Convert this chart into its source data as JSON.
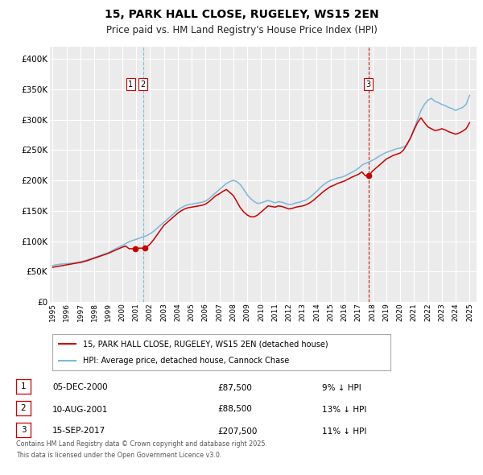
{
  "title": "15, PARK HALL CLOSE, RUGELEY, WS15 2EN",
  "subtitle": "Price paid vs. HM Land Registry's House Price Index (HPI)",
  "title_fontsize": 10,
  "subtitle_fontsize": 8.5,
  "background_color": "#ffffff",
  "plot_bg_color": "#ebebeb",
  "grid_color": "#ffffff",
  "hpi_color": "#7ab8d8",
  "price_color": "#cc0000",
  "xlim": [
    1994.8,
    2025.5
  ],
  "ylim": [
    0,
    420000
  ],
  "yticks": [
    0,
    50000,
    100000,
    150000,
    200000,
    250000,
    300000,
    350000,
    400000
  ],
  "ytick_labels": [
    "£0",
    "£50K",
    "£100K",
    "£150K",
    "£200K",
    "£250K",
    "£300K",
    "£350K",
    "£400K"
  ],
  "xticks": [
    1995,
    1996,
    1997,
    1998,
    1999,
    2000,
    2001,
    2002,
    2003,
    2004,
    2005,
    2006,
    2007,
    2008,
    2009,
    2010,
    2011,
    2012,
    2013,
    2014,
    2015,
    2016,
    2017,
    2018,
    2019,
    2020,
    2021,
    2022,
    2023,
    2024,
    2025
  ],
  "sales": [
    {
      "label": "1",
      "date": "05-DEC-2000",
      "year": 2000.92,
      "price": 87500,
      "pct": "9%",
      "dir": "↓"
    },
    {
      "label": "2",
      "date": "10-AUG-2001",
      "year": 2001.61,
      "price": 88500,
      "pct": "13%",
      "dir": "↓"
    },
    {
      "label": "3",
      "date": "15-SEP-2017",
      "year": 2017.71,
      "price": 207500,
      "pct": "11%",
      "dir": "↓"
    }
  ],
  "vline1_x": 2001.5,
  "vline2_x": 2017.71,
  "legend_label1": "15, PARK HALL CLOSE, RUGELEY, WS15 2EN (detached house)",
  "legend_label2": "HPI: Average price, detached house, Cannock Chase",
  "footer1": "Contains HM Land Registry data © Crown copyright and database right 2025.",
  "footer2": "This data is licensed under the Open Government Licence v3.0.",
  "hpi_data_x": [
    1995.0,
    1995.25,
    1995.5,
    1995.75,
    1996.0,
    1996.25,
    1996.5,
    1996.75,
    1997.0,
    1997.25,
    1997.5,
    1997.75,
    1998.0,
    1998.25,
    1998.5,
    1998.75,
    1999.0,
    1999.25,
    1999.5,
    1999.75,
    2000.0,
    2000.25,
    2000.5,
    2000.75,
    2001.0,
    2001.25,
    2001.5,
    2001.75,
    2002.0,
    2002.25,
    2002.5,
    2002.75,
    2003.0,
    2003.25,
    2003.5,
    2003.75,
    2004.0,
    2004.25,
    2004.5,
    2004.75,
    2005.0,
    2005.25,
    2005.5,
    2005.75,
    2006.0,
    2006.25,
    2006.5,
    2006.75,
    2007.0,
    2007.25,
    2007.5,
    2007.75,
    2008.0,
    2008.25,
    2008.5,
    2008.75,
    2009.0,
    2009.25,
    2009.5,
    2009.75,
    2010.0,
    2010.25,
    2010.5,
    2010.75,
    2011.0,
    2011.25,
    2011.5,
    2011.75,
    2012.0,
    2012.25,
    2012.5,
    2012.75,
    2013.0,
    2013.25,
    2013.5,
    2013.75,
    2014.0,
    2014.25,
    2014.5,
    2014.75,
    2015.0,
    2015.25,
    2015.5,
    2015.75,
    2016.0,
    2016.25,
    2016.5,
    2016.75,
    2017.0,
    2017.25,
    2017.5,
    2017.75,
    2018.0,
    2018.25,
    2018.5,
    2018.75,
    2019.0,
    2019.25,
    2019.5,
    2019.75,
    2020.0,
    2020.25,
    2020.5,
    2020.75,
    2021.0,
    2021.25,
    2021.5,
    2021.75,
    2022.0,
    2022.25,
    2022.5,
    2022.75,
    2023.0,
    2023.25,
    2023.5,
    2023.75,
    2024.0,
    2024.25,
    2024.5,
    2024.75,
    2025.0
  ],
  "hpi_data_y": [
    60000,
    61000,
    62000,
    62500,
    63000,
    63500,
    64000,
    65000,
    66000,
    67500,
    69000,
    71000,
    73000,
    75000,
    77000,
    79000,
    81000,
    84000,
    87000,
    90000,
    93000,
    96000,
    99000,
    101000,
    103000,
    105000,
    107000,
    109000,
    112000,
    116000,
    121000,
    126000,
    131000,
    136000,
    141000,
    146000,
    151000,
    155000,
    158000,
    160000,
    161000,
    162000,
    163000,
    164000,
    166000,
    170000,
    175000,
    180000,
    185000,
    190000,
    195000,
    198000,
    200000,
    198000,
    193000,
    185000,
    176000,
    170000,
    165000,
    162000,
    163000,
    165000,
    167000,
    165000,
    163000,
    165000,
    164000,
    162000,
    160000,
    161000,
    163000,
    164000,
    166000,
    168000,
    172000,
    177000,
    182000,
    188000,
    193000,
    197000,
    200000,
    202000,
    204000,
    205000,
    207000,
    210000,
    213000,
    216000,
    220000,
    225000,
    228000,
    230000,
    233000,
    236000,
    240000,
    243000,
    246000,
    248000,
    250000,
    252000,
    253000,
    255000,
    258000,
    270000,
    285000,
    300000,
    315000,
    325000,
    332000,
    335000,
    330000,
    328000,
    325000,
    323000,
    320000,
    318000,
    315000,
    318000,
    320000,
    325000,
    340000
  ],
  "price_data_x": [
    1995.0,
    1995.25,
    1995.5,
    1995.75,
    1996.0,
    1996.25,
    1996.5,
    1996.75,
    1997.0,
    1997.25,
    1997.5,
    1997.75,
    1998.0,
    1998.25,
    1998.5,
    1998.75,
    1999.0,
    1999.25,
    1999.5,
    1999.75,
    2000.0,
    2000.25,
    2000.5,
    2000.75,
    2001.0,
    2001.25,
    2001.5,
    2001.75,
    2002.0,
    2002.25,
    2002.5,
    2002.75,
    2003.0,
    2003.25,
    2003.5,
    2003.75,
    2004.0,
    2004.25,
    2004.5,
    2004.75,
    2005.0,
    2005.25,
    2005.5,
    2005.75,
    2006.0,
    2006.25,
    2006.5,
    2006.75,
    2007.0,
    2007.25,
    2007.5,
    2007.75,
    2008.0,
    2008.25,
    2008.5,
    2008.75,
    2009.0,
    2009.25,
    2009.5,
    2009.75,
    2010.0,
    2010.25,
    2010.5,
    2010.75,
    2011.0,
    2011.25,
    2011.5,
    2011.75,
    2012.0,
    2012.25,
    2012.5,
    2012.75,
    2013.0,
    2013.25,
    2013.5,
    2013.75,
    2014.0,
    2014.25,
    2014.5,
    2014.75,
    2015.0,
    2015.25,
    2015.5,
    2015.75,
    2016.0,
    2016.25,
    2016.5,
    2016.75,
    2017.0,
    2017.25,
    2017.5,
    2017.75,
    2018.0,
    2018.25,
    2018.5,
    2018.75,
    2019.0,
    2019.25,
    2019.5,
    2019.75,
    2020.0,
    2020.25,
    2020.5,
    2020.75,
    2021.0,
    2021.25,
    2021.5,
    2021.75,
    2022.0,
    2022.25,
    2022.5,
    2022.75,
    2023.0,
    2023.25,
    2023.5,
    2023.75,
    2024.0,
    2024.25,
    2024.5,
    2024.75,
    2025.0
  ],
  "price_data_y": [
    57000,
    58000,
    59000,
    60000,
    61000,
    62000,
    63000,
    64000,
    65000,
    66500,
    68000,
    70000,
    72000,
    74000,
    76000,
    78000,
    80000,
    82500,
    85000,
    87500,
    90000,
    92000,
    87500,
    87500,
    88000,
    88500,
    88500,
    90000,
    95000,
    102000,
    110000,
    118000,
    126000,
    131000,
    136000,
    141000,
    146000,
    150000,
    153000,
    155000,
    156000,
    157000,
    158000,
    159000,
    161000,
    165000,
    170000,
    175000,
    178000,
    182000,
    185000,
    180000,
    175000,
    165000,
    155000,
    148000,
    143000,
    140000,
    140000,
    143000,
    148000,
    153000,
    158000,
    157000,
    156000,
    158000,
    157000,
    155000,
    153000,
    154000,
    156000,
    157000,
    158000,
    160000,
    163000,
    167000,
    172000,
    177000,
    182000,
    186000,
    190000,
    192000,
    195000,
    197000,
    199000,
    202000,
    205000,
    207500,
    210000,
    214000,
    207500,
    207500,
    215000,
    220000,
    225000,
    230000,
    235000,
    238000,
    241000,
    243000,
    245000,
    250000,
    260000,
    270000,
    283000,
    295000,
    303000,
    295000,
    288000,
    285000,
    282000,
    283000,
    285000,
    283000,
    280000,
    278000,
    276000,
    278000,
    281000,
    285000,
    295000
  ]
}
